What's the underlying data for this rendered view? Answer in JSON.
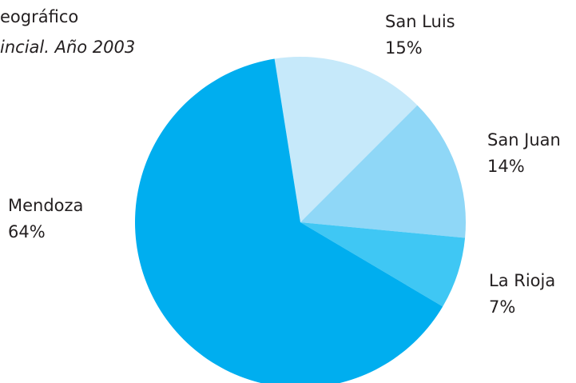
{
  "chart_data": {
    "type": "pie",
    "title": "eográfico",
    "subtitle": "incial. Año 2003",
    "categories": [
      "San Luis",
      "San Juan",
      "La Rioja",
      "Mendoza"
    ],
    "values": [
      15,
      14,
      7,
      64
    ],
    "value_labels": [
      "15%",
      "14%",
      "7%",
      "64%"
    ],
    "colors": [
      "#c6e9fa",
      "#8fd7f7",
      "#3fc7f4",
      "#00aeef"
    ]
  }
}
